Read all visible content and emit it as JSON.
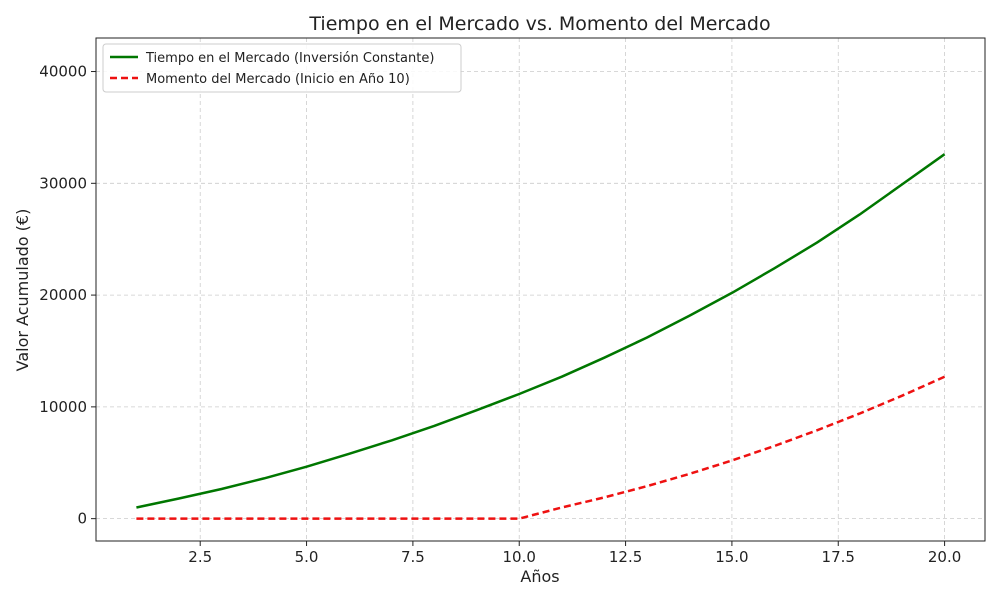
{
  "chart_data": {
    "type": "line",
    "title": "Tiempo en el Mercado vs. Momento del Mercado",
    "xlabel": "Años",
    "ylabel": "Valor Acumulado (€)",
    "xlim": [
      0.05,
      20.95
    ],
    "ylim": [
      -2000,
      43000
    ],
    "xticks": [
      2.5,
      5.0,
      7.5,
      10.0,
      12.5,
      15.0,
      17.5,
      20.0
    ],
    "xtick_labels": [
      "2.5",
      "5.0",
      "7.5",
      "10.0",
      "12.5",
      "15.0",
      "17.5",
      "20.0"
    ],
    "yticks": [
      0,
      10000,
      20000,
      30000,
      40000
    ],
    "ytick_labels": [
      "0",
      "10000",
      "20000",
      "30000",
      "40000"
    ],
    "grid": true,
    "legend_position": "top-left",
    "x": [
      1,
      2,
      3,
      4,
      5,
      6,
      7,
      8,
      9,
      10,
      11,
      12,
      13,
      14,
      15,
      16,
      17,
      18,
      19,
      20
    ],
    "series": [
      {
        "name": "Tiempo en el Mercado (Inversión Constante)",
        "color": "#007700",
        "style": "solid",
        "values": [
          1000,
          1800,
          2650,
          3600,
          4650,
          5800,
          7000,
          8300,
          9700,
          11150,
          12700,
          14400,
          16200,
          18150,
          20200,
          22400,
          24700,
          27200,
          29900,
          32600
        ]
      },
      {
        "name": "Momento del Mercado (Inicio en Año 10)",
        "color": "#ee1111",
        "style": "dashed",
        "values": [
          0,
          0,
          0,
          0,
          0,
          0,
          0,
          0,
          0,
          0,
          1000,
          1900,
          2900,
          4000,
          5200,
          6500,
          7900,
          9400,
          11000,
          12700
        ]
      }
    ]
  }
}
